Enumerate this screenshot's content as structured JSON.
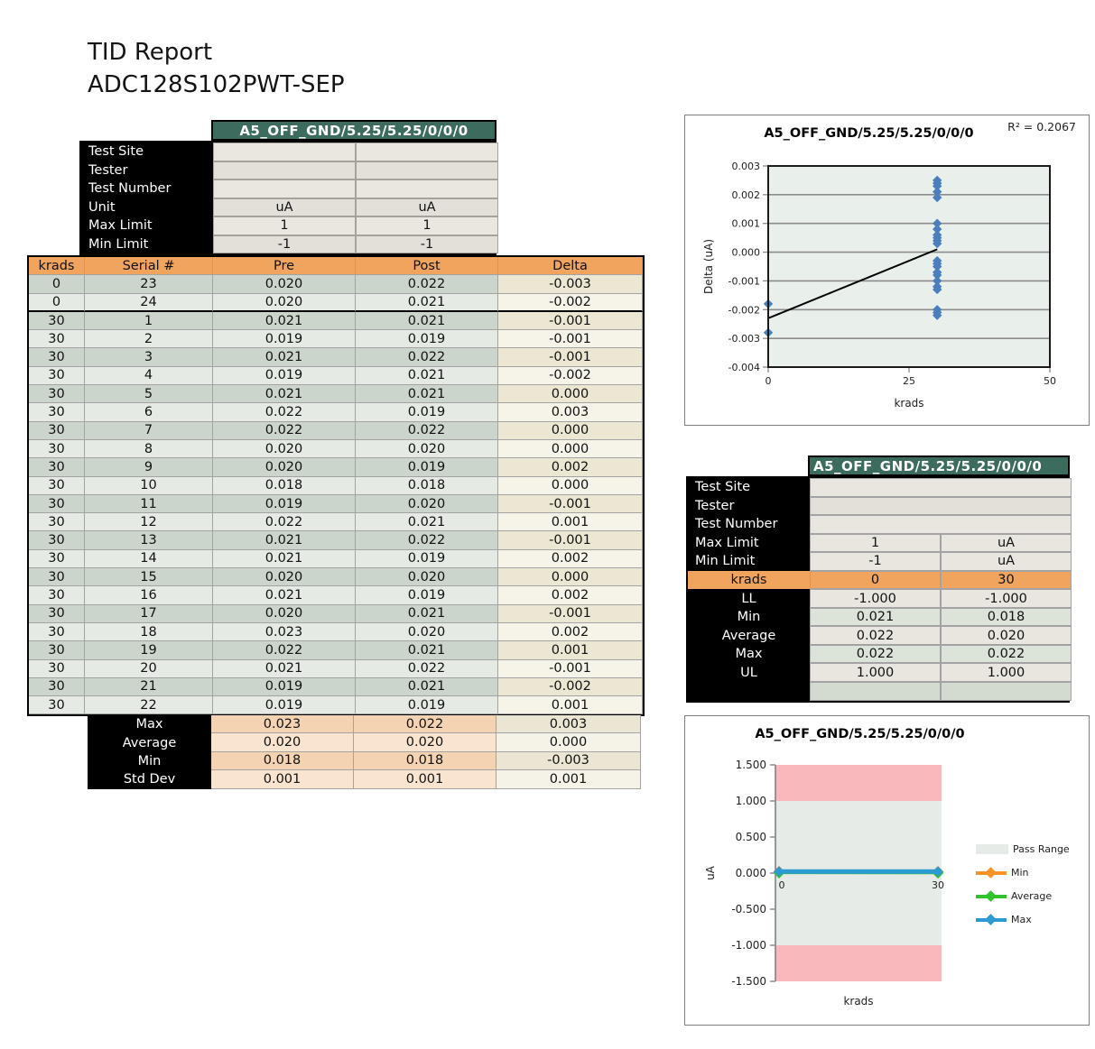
{
  "page": {
    "title_line1": "TID Report",
    "title_line2": "ADC128S102PWT-SEP"
  },
  "colors": {
    "header_green": "#3c6c5e",
    "header_orange": "#f0a45e",
    "scatter_blue": "#4a7ebc",
    "fail_pink": "#f9b9bc",
    "pass_gray": "#e6ebe8",
    "min_orange": "#f79428",
    "avg_green": "#2fc22d",
    "max_blue": "#2d9ad2"
  },
  "left_table": {
    "header": "A5_OFF_GND/5.25/5.25/0/0/0",
    "meta_rows": [
      {
        "label": "Test Site",
        "v1": "",
        "v2": ""
      },
      {
        "label": "Tester",
        "v1": "",
        "v2": ""
      },
      {
        "label": "Test Number",
        "v1": "",
        "v2": ""
      },
      {
        "label": "Unit",
        "v1": "uA",
        "v2": "uA"
      },
      {
        "label": "Max Limit",
        "v1": "1",
        "v2": "1"
      },
      {
        "label": "Min Limit",
        "v1": "-1",
        "v2": "-1"
      }
    ],
    "columns": [
      "krads",
      "Serial #",
      "Pre",
      "Post",
      "Delta"
    ],
    "rows": [
      [
        "0",
        "23",
        "0.020",
        "0.022",
        "-0.003"
      ],
      [
        "0",
        "24",
        "0.020",
        "0.021",
        "-0.002"
      ],
      [
        "30",
        "1",
        "0.021",
        "0.021",
        "-0.001"
      ],
      [
        "30",
        "2",
        "0.019",
        "0.019",
        "-0.001"
      ],
      [
        "30",
        "3",
        "0.021",
        "0.022",
        "-0.001"
      ],
      [
        "30",
        "4",
        "0.019",
        "0.021",
        "-0.002"
      ],
      [
        "30",
        "5",
        "0.021",
        "0.021",
        "0.000"
      ],
      [
        "30",
        "6",
        "0.022",
        "0.019",
        "0.003"
      ],
      [
        "30",
        "7",
        "0.022",
        "0.022",
        "0.000"
      ],
      [
        "30",
        "8",
        "0.020",
        "0.020",
        "0.000"
      ],
      [
        "30",
        "9",
        "0.020",
        "0.019",
        "0.002"
      ],
      [
        "30",
        "10",
        "0.018",
        "0.018",
        "0.000"
      ],
      [
        "30",
        "11",
        "0.019",
        "0.020",
        "-0.001"
      ],
      [
        "30",
        "12",
        "0.022",
        "0.021",
        "0.001"
      ],
      [
        "30",
        "13",
        "0.021",
        "0.022",
        "-0.001"
      ],
      [
        "30",
        "14",
        "0.021",
        "0.019",
        "0.002"
      ],
      [
        "30",
        "15",
        "0.020",
        "0.020",
        "0.000"
      ],
      [
        "30",
        "16",
        "0.021",
        "0.019",
        "0.002"
      ],
      [
        "30",
        "17",
        "0.020",
        "0.021",
        "-0.001"
      ],
      [
        "30",
        "18",
        "0.023",
        "0.020",
        "0.002"
      ],
      [
        "30",
        "19",
        "0.022",
        "0.021",
        "0.001"
      ],
      [
        "30",
        "20",
        "0.021",
        "0.022",
        "-0.001"
      ],
      [
        "30",
        "21",
        "0.019",
        "0.021",
        "-0.002"
      ],
      [
        "30",
        "22",
        "0.019",
        "0.019",
        "0.001"
      ]
    ],
    "summary": [
      {
        "label": "Max",
        "pre": "0.023",
        "post": "0.022",
        "delta": "0.003"
      },
      {
        "label": "Average",
        "pre": "0.020",
        "post": "0.020",
        "delta": "0.000"
      },
      {
        "label": "Min",
        "pre": "0.018",
        "post": "0.018",
        "delta": "-0.003"
      },
      {
        "label": "Std Dev",
        "pre": "0.001",
        "post": "0.001",
        "delta": "0.001"
      }
    ]
  },
  "stats_table": {
    "header": "A5_OFF_GND/5.25/5.25/0/0/0",
    "meta_rows": [
      {
        "label": "Test Site",
        "value": ""
      },
      {
        "label": "Tester",
        "value": ""
      },
      {
        "label": "Test Number",
        "value": ""
      },
      {
        "label": "Max Limit",
        "v1": "1",
        "v2": "uA"
      },
      {
        "label": "Min Limit",
        "v1": "-1",
        "v2": "uA"
      }
    ],
    "krads_row": {
      "label": "krads",
      "v1": "0",
      "v2": "30"
    },
    "stat_rows": [
      {
        "label": "LL",
        "v1": "-1.000",
        "v2": "-1.000"
      },
      {
        "label": "Min",
        "v1": "0.021",
        "v2": "0.018"
      },
      {
        "label": "Average",
        "v1": "0.022",
        "v2": "0.020"
      },
      {
        "label": "Max",
        "v1": "0.022",
        "v2": "0.022"
      },
      {
        "label": "UL",
        "v1": "1.000",
        "v2": "1.000"
      },
      {
        "label": "",
        "v1": "",
        "v2": ""
      }
    ]
  },
  "chart_data": [
    {
      "type": "scatter",
      "title": "A5_OFF_GND/5.25/5.25/0/0/0",
      "annotation": "R² = 0.2067",
      "xlabel": "krads",
      "ylabel": "Delta (uA)",
      "xlim": [
        0,
        50
      ],
      "ylim": [
        -0.004,
        0.003
      ],
      "xticks": [
        "0",
        "25",
        "50"
      ],
      "yticks": [
        "0.003",
        "0.002",
        "0.001",
        "0.000",
        "-0.001",
        "-0.002",
        "-0.003",
        "-0.004"
      ],
      "grid": true,
      "plot_bg": "#e9efeb",
      "marker_color": "#4a7ebc",
      "points": [
        [
          0,
          -0.0018
        ],
        [
          0,
          -0.0028
        ],
        [
          30,
          0.0025
        ],
        [
          30,
          0.0024
        ],
        [
          30,
          0.0023
        ],
        [
          30,
          0.0021
        ],
        [
          30,
          0.0019
        ],
        [
          30,
          0.001
        ],
        [
          30,
          0.0008
        ],
        [
          30,
          0.0006
        ],
        [
          30,
          0.0005
        ],
        [
          30,
          0.0004
        ],
        [
          30,
          0.0003
        ],
        [
          30,
          -0.0003
        ],
        [
          30,
          -0.0004
        ],
        [
          30,
          -0.0005
        ],
        [
          30,
          -0.0007
        ],
        [
          30,
          -0.0008
        ],
        [
          30,
          -0.001
        ],
        [
          30,
          -0.0012
        ],
        [
          30,
          -0.0013
        ],
        [
          30,
          -0.002
        ],
        [
          30,
          -0.0021
        ],
        [
          30,
          -0.0022
        ]
      ],
      "trendline": [
        [
          0,
          -0.0023
        ],
        [
          30,
          0.0001
        ]
      ]
    },
    {
      "type": "line",
      "title": "A5_OFF_GND/5.25/5.25/0/0/0",
      "xlabel": "krads",
      "ylabel": "uA",
      "ylim": [
        -1.5,
        1.5
      ],
      "yticks": [
        "1.500",
        "1.000",
        "0.500",
        "0.000",
        "-0.500",
        "-1.000",
        "-1.500"
      ],
      "x": [
        0,
        30
      ],
      "xticks": [
        "0",
        "30"
      ],
      "pass_range": {
        "min": -1.0,
        "max": 1.0,
        "label": "Pass Range",
        "fill": "#e6ebe8",
        "fail_fill": "#f9b9bc"
      },
      "series": [
        {
          "name": "Min",
          "values": [
            0.021,
            0.018
          ],
          "color": "#f79428"
        },
        {
          "name": "Average",
          "values": [
            0.022,
            0.02
          ],
          "color": "#2fc22d"
        },
        {
          "name": "Max",
          "values": [
            0.022,
            0.022
          ],
          "color": "#2d9ad2"
        }
      ],
      "legend_position": "right"
    }
  ]
}
